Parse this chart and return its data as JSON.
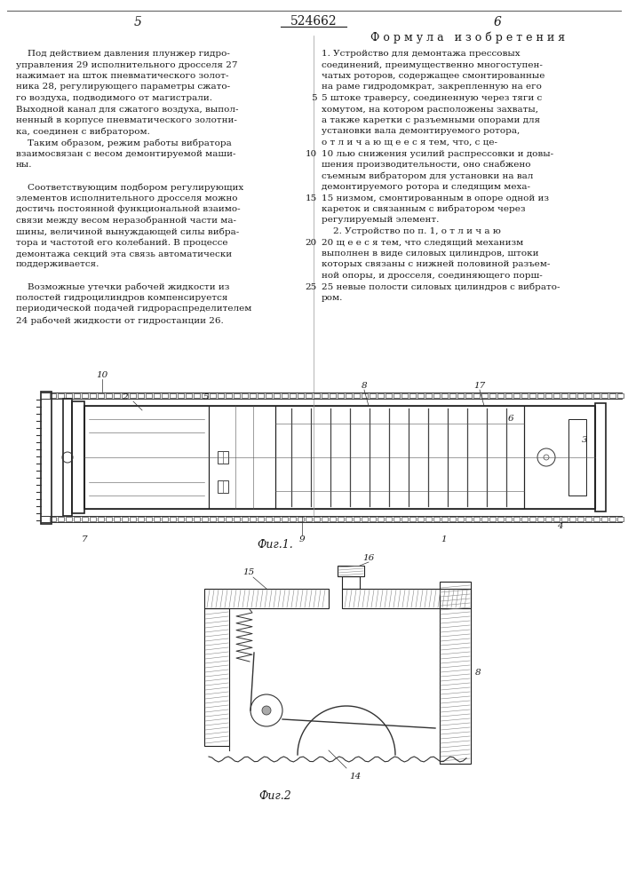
{
  "page_number_left": "5",
  "page_number_right": "6",
  "patent_number": "524662",
  "header_right": "Ф о р м у л а   и з о б р е т е н и я",
  "left_col": [
    "    Под действием давления плунжер гидро-",
    "управления 29 исполнительного дросселя 27",
    "нажимает на шток пневматического золот-",
    "ника 28, регулирующего параметры сжато-",
    "го воздуха, подводимого от магистрали.",
    "Выходной канал для сжатого воздуха, выпол-",
    "ненный в корпусе пневматического золотни-",
    "ка, соединен с вибратором.",
    "    Таким образом, режим работы вибратора",
    "взаимосвязан с весом демонтируемой маши-",
    "ны.",
    "",
    "    Соответствующим подбором регулирующих",
    "элементов исполнительного дросселя можно",
    "достичь постоянной функциональной взаимо-",
    "связи между весом неразобранной части ма-",
    "шины, величиной вынуждающей силы вибра-",
    "тора и частотой его колебаний. В процессе",
    "демонтажа секций эта связь автоматически",
    "поддерживается.",
    "",
    "    Возможные утечки рабочей жидкости из",
    "полостей гидроцилиндров компенсируется",
    "периодической подачей гидрораспределителем",
    "24 рабочей жидкости от гидростанции 26."
  ],
  "right_col": [
    "1. Устройство для демонтажа прессовых",
    "соединений, преимущественно многоступен-",
    "чатых роторов, содержащее смонтированные",
    "на раме гидродомкрат, закрепленную на его",
    "5 штоке траверсу, соединенную через тяги с",
    "хомутом, на котором расположены захваты,",
    "а также каретки с разъемными опорами для",
    "установки вала демонтируемого ротора,",
    "о т л и ч а ю щ е е с я тем, что, с це-",
    "10 лью снижения усилий распрессовки и довы-",
    "шения производительности, оно снабжено",
    "съемным вибратором для установки на вал",
    "демонтируемого ротора и следящим меха-",
    "15 низмом, смонтированным в опоре одной из",
    "кареток и связанным с вибратором через",
    "регулируемый элемент.",
    "    2. Устройство по п. 1, о т л и ч а ю",
    "20 щ е е с я тем, что следящий механизм",
    "выполнен в виде силовых цилиндров, штоки",
    "которых связаны с нижней половиной разъем-",
    "ной опоры, и дросселя, соединяющего порш-",
    "25 невые полости силовых цилиндров с вибрато-",
    "ром."
  ],
  "fig1_label": "Фиг.1.",
  "fig2_label": "Фиг.2",
  "bg_color": "#ffffff",
  "text_color": "#1a1a1a"
}
